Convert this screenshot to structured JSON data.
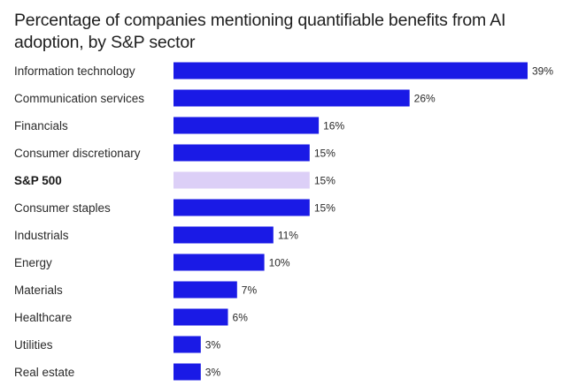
{
  "chart_data": {
    "type": "bar",
    "orientation": "horizontal",
    "title": "Percentage of companies mentioning quantifiable benefits from AI adoption, by S&P sector",
    "xlabel": "",
    "ylabel": "",
    "xlim": [
      0,
      39
    ],
    "grid": false,
    "legend": "none",
    "value_suffix": "%",
    "categories": [
      "Information technology",
      "Communication services",
      "Financials",
      "Consumer discretionary",
      "S&P 500",
      "Consumer staples",
      "Industrials",
      "Energy",
      "Materials",
      "Healthcare",
      "Utilities",
      "Real estate"
    ],
    "values": [
      39,
      26,
      16,
      15,
      15,
      15,
      11,
      10,
      7,
      6,
      3,
      3
    ],
    "highlight_category": "S&P 500",
    "colors": {
      "bar": "#1a1ae6",
      "highlight_bar": "#dccff7",
      "text": "#2a2a2a"
    }
  }
}
